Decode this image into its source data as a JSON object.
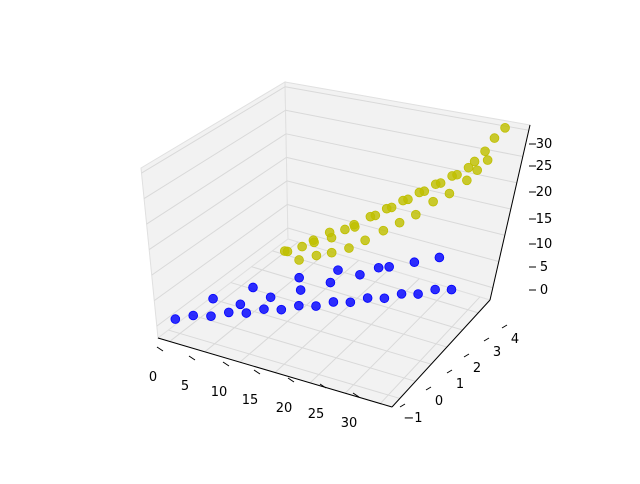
{
  "chart_data": {
    "type": "scatter",
    "projection": "3d",
    "grid": true,
    "x_ticks": [
      "0",
      "5",
      "10",
      "15",
      "20",
      "25",
      "30"
    ],
    "y_ticks": [
      "−1",
      "0",
      "1",
      "2",
      "3",
      "4"
    ],
    "z_ticks": [
      "0",
      "5",
      "10",
      "15",
      "20",
      "25",
      "30"
    ],
    "xlim": [
      -1,
      33
    ],
    "ylim": [
      -1.5,
      4.7
    ],
    "zlim": [
      -2,
      32
    ],
    "series": [
      {
        "color": "#bfbf00",
        "points_xyz": [
          [
            3,
            3.2,
            2
          ],
          [
            4,
            3.0,
            3
          ],
          [
            5,
            3.4,
            3
          ],
          [
            6,
            3.6,
            4
          ],
          [
            7,
            3.3,
            5
          ],
          [
            8,
            3.7,
            6
          ],
          [
            9,
            3.5,
            6
          ],
          [
            10,
            3.8,
            7
          ],
          [
            11,
            3.9,
            8
          ],
          [
            12,
            3.6,
            9
          ],
          [
            13,
            4.0,
            10
          ],
          [
            14,
            3.9,
            11
          ],
          [
            15,
            4.1,
            12
          ],
          [
            16,
            4.0,
            13
          ],
          [
            17,
            4.2,
            14
          ],
          [
            18,
            4.1,
            15
          ],
          [
            19,
            4.3,
            16
          ],
          [
            20,
            4.2,
            17
          ],
          [
            21,
            4.4,
            18
          ],
          [
            22,
            4.3,
            19
          ],
          [
            23,
            4.5,
            20
          ],
          [
            24,
            4.4,
            21
          ],
          [
            25,
            4.6,
            22
          ],
          [
            26,
            4.5,
            24
          ],
          [
            27,
            4.6,
            26
          ],
          [
            28,
            4.6,
            29
          ],
          [
            29,
            4.7,
            31
          ],
          [
            6,
            3.0,
            2
          ],
          [
            8,
            3.2,
            3
          ],
          [
            10,
            3.3,
            4
          ],
          [
            12,
            3.5,
            5
          ],
          [
            14,
            3.6,
            7
          ],
          [
            16,
            3.8,
            9
          ],
          [
            18,
            3.9,
            11
          ],
          [
            20,
            4.0,
            13
          ],
          [
            22,
            4.1,
            16
          ],
          [
            24,
            4.2,
            18
          ],
          [
            26,
            4.3,
            21
          ],
          [
            27,
            4.4,
            23
          ],
          [
            28,
            4.5,
            25
          ]
        ]
      },
      {
        "color": "#0000ff",
        "points_xyz": [
          [
            0,
            -1.0,
            1
          ],
          [
            2,
            -0.8,
            2
          ],
          [
            4,
            -0.6,
            2
          ],
          [
            6,
            -0.4,
            3
          ],
          [
            8,
            -0.2,
            3
          ],
          [
            10,
            0.0,
            4
          ],
          [
            12,
            0.2,
            4
          ],
          [
            14,
            0.4,
            5
          ],
          [
            16,
            0.6,
            5
          ],
          [
            18,
            0.8,
            6
          ],
          [
            20,
            1.0,
            6
          ],
          [
            22,
            1.2,
            7
          ],
          [
            24,
            1.4,
            7
          ],
          [
            26,
            1.6,
            8
          ],
          [
            28,
            1.8,
            8
          ],
          [
            30,
            2.0,
            9
          ],
          [
            32,
            2.2,
            9
          ],
          [
            5,
            0.5,
            1
          ],
          [
            8,
            1.0,
            2
          ],
          [
            11,
            1.5,
            3
          ],
          [
            14,
            2.0,
            4
          ],
          [
            17,
            2.5,
            5
          ],
          [
            20,
            3.0,
            6
          ],
          [
            23,
            3.3,
            7
          ],
          [
            26,
            3.6,
            8
          ],
          [
            3,
            -0.2,
            4
          ],
          [
            7,
            0.4,
            6
          ],
          [
            12,
            1.0,
            8
          ],
          [
            16,
            1.6,
            9
          ],
          [
            21,
            2.0,
            10
          ]
        ]
      }
    ]
  }
}
